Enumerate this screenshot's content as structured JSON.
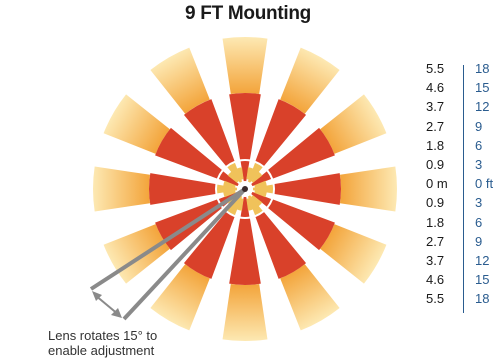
{
  "title": "9 FT Mounting",
  "scale": {
    "rows": [
      {
        "m": "5.5",
        "ft": "18"
      },
      {
        "m": "4.6",
        "ft": "15"
      },
      {
        "m": "3.7",
        "ft": "12"
      },
      {
        "m": "2.7",
        "ft": "9"
      },
      {
        "m": "1.8",
        "ft": "6"
      },
      {
        "m": "0.9",
        "ft": "3"
      },
      {
        "m": "0 m",
        "ft": "0 ft"
      },
      {
        "m": "0.9",
        "ft": "3"
      },
      {
        "m": "1.8",
        "ft": "6"
      },
      {
        "m": "2.7",
        "ft": "9"
      },
      {
        "m": "3.7",
        "ft": "12"
      },
      {
        "m": "4.6",
        "ft": "15"
      },
      {
        "m": "5.5",
        "ft": "18"
      }
    ]
  },
  "note": {
    "line1": "Lens rotates 15° to",
    "line2": "enable adjustment"
  },
  "colors": {
    "red_zone": "#d9412a",
    "yellow_zone": "#f0c25a",
    "fade_zone": "#f6c16a",
    "pointer": "#8a8a8a",
    "scale_blue": "#2a5c8f"
  }
}
